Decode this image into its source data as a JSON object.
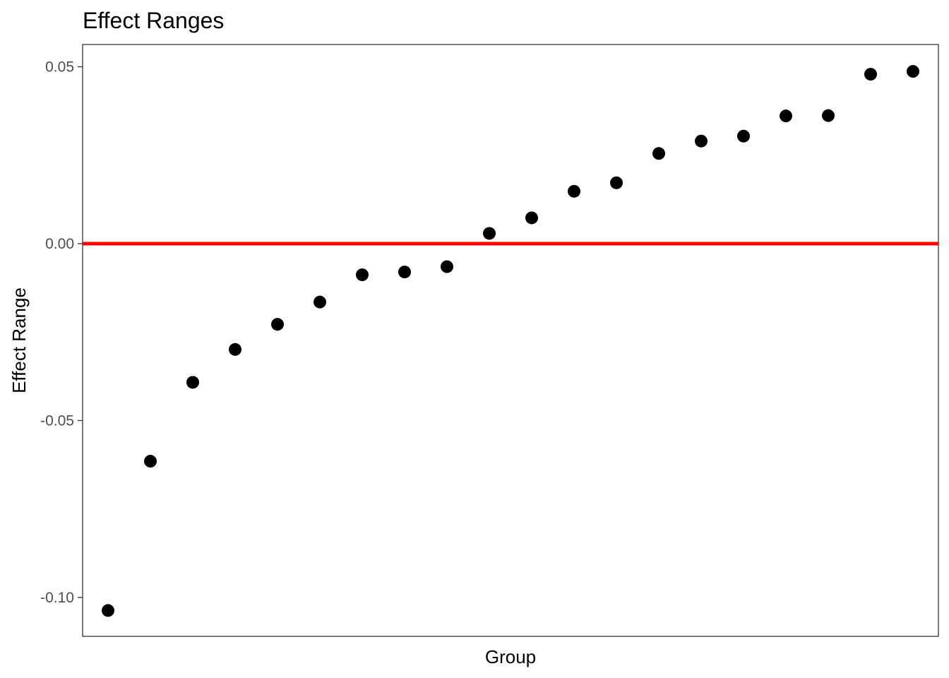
{
  "chart_data": {
    "type": "scatter",
    "title": "Effect Ranges",
    "xlabel": "Group",
    "ylabel": "Effect Range",
    "ylim": [
      -0.111,
      0.0563
    ],
    "y_ticks": [
      0.05,
      0.0,
      -0.05,
      -0.1
    ],
    "y_tick_labels": [
      "0.05",
      "0.00",
      "-0.05",
      "-0.10"
    ],
    "x_ticks_shown": false,
    "grid": false,
    "legend": "none",
    "reference_line": {
      "y": 0.0,
      "color": "#ff0000"
    },
    "point_color": "#000000",
    "values": [
      -0.1037,
      -0.0615,
      -0.0392,
      -0.0299,
      -0.0228,
      -0.0165,
      -0.0088,
      -0.008,
      -0.0065,
      0.0029,
      0.0073,
      0.0148,
      0.0172,
      0.0255,
      0.029,
      0.0304,
      0.0361,
      0.0362,
      0.0479,
      0.0487
    ]
  }
}
